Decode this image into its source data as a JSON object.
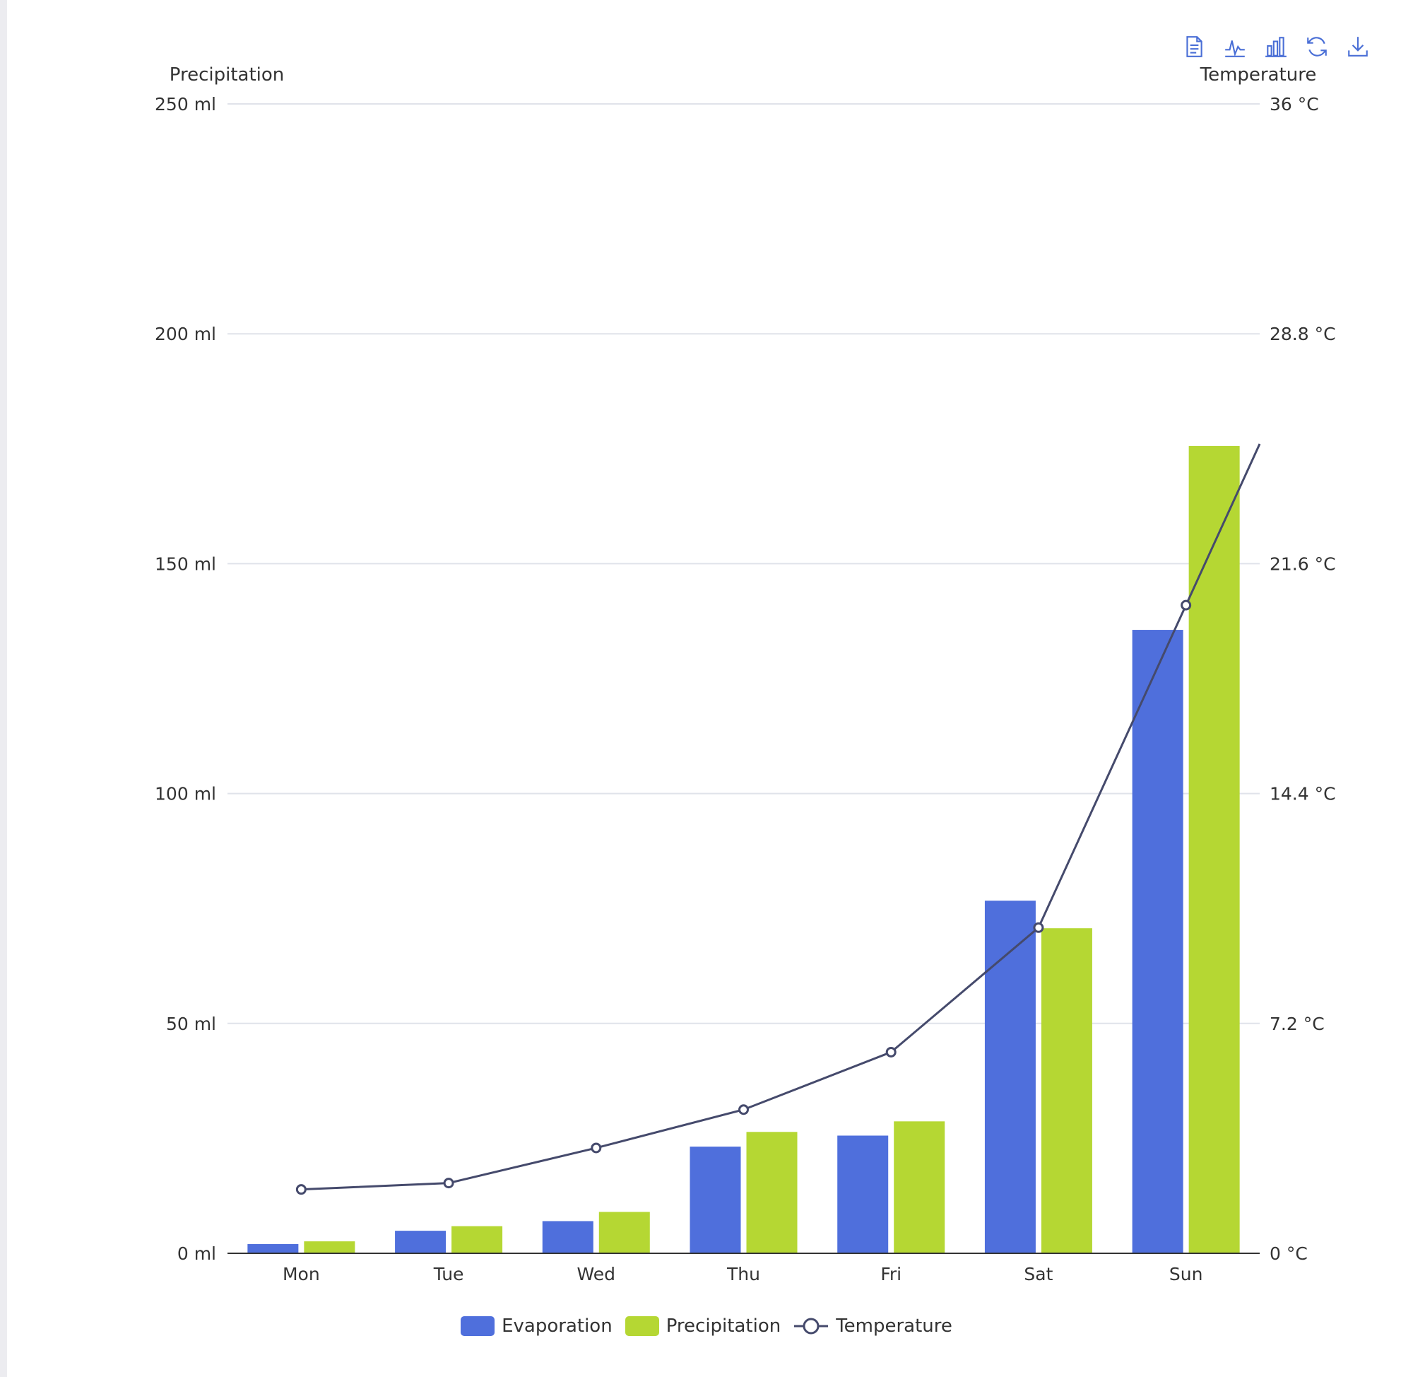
{
  "toolbox": {
    "icons": [
      "data-view-icon",
      "line-chart-icon",
      "bar-chart-icon",
      "refresh-icon",
      "download-icon"
    ],
    "color": "#4a6fd6"
  },
  "chart_data": {
    "type": "bar",
    "categories": [
      "Mon",
      "Tue",
      "Wed",
      "Thu",
      "Fri",
      "Sat",
      "Sun"
    ],
    "series": [
      {
        "name": "Evaporation",
        "type": "bar",
        "axis": "left",
        "color": "#4f6fdc",
        "values": [
          2,
          4.9,
          7,
          23.2,
          25.6,
          76.7,
          135.6
        ]
      },
      {
        "name": "Precipitation",
        "type": "bar",
        "axis": "left",
        "color": "#b5d733",
        "values": [
          2.6,
          5.9,
          9,
          26.4,
          28.7,
          70.7,
          175.6
        ]
      },
      {
        "name": "Temperature",
        "type": "line",
        "axis": "right",
        "color": "#454a6c",
        "values": [
          2,
          2.2,
          3.3,
          4.5,
          6.3,
          10.2,
          20.3
        ]
      }
    ],
    "y_left": {
      "name": "Precipitation",
      "range": [
        0,
        250
      ],
      "ticks": [
        "0 ml",
        "50 ml",
        "100 ml",
        "150 ml",
        "200 ml",
        "250 ml"
      ]
    },
    "y_right": {
      "name": "Temperature",
      "range": [
        0,
        36
      ],
      "ticks": [
        "0 °C",
        "7.2 °C",
        "14.4 °C",
        "21.6 °C",
        "28.8 °C",
        "36 °C"
      ]
    },
    "grid": true,
    "legend_position": "bottom-center"
  },
  "legend": {
    "items": [
      {
        "label": "Evaporation",
        "color": "#4f6fdc"
      },
      {
        "label": "Precipitation",
        "color": "#b5d733"
      },
      {
        "label": "Temperature",
        "color": "#454a6c"
      }
    ]
  }
}
